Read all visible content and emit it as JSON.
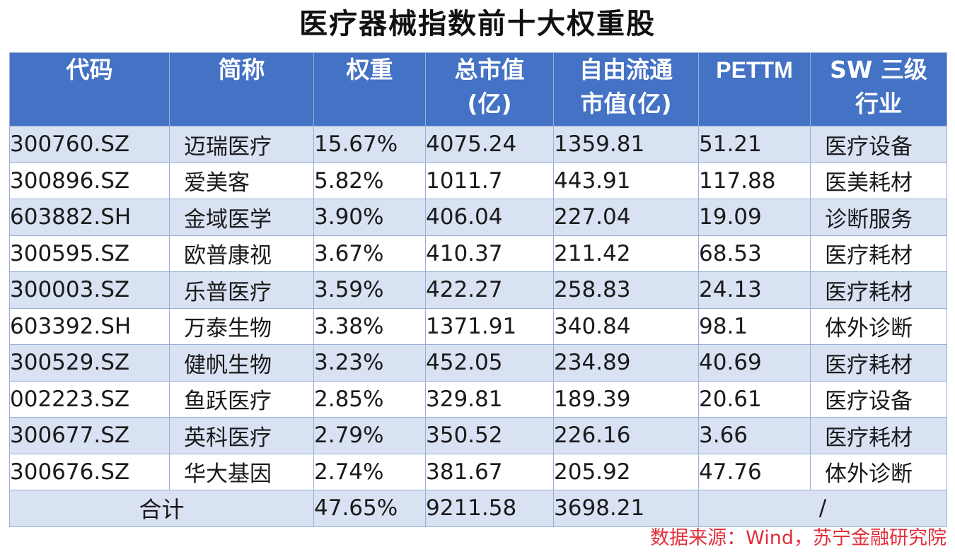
{
  "title": "医疗器械指数前十大权重股",
  "table": {
    "headers": {
      "code": "代码",
      "name": "简称",
      "weight": "权重",
      "mcap_line1": "总市值",
      "mcap_line2": "(亿)",
      "float_line1": "自由流通",
      "float_line2": "市值(亿)",
      "pe": "PETTM",
      "industry_line1": "SW 三级",
      "industry_line2": "行业"
    },
    "rows": [
      {
        "code": "300760.SZ",
        "name": "迈瑞医疗",
        "weight": "15.67%",
        "mcap": "4075.24",
        "float_mcap": "1359.81",
        "pe": "51.21",
        "industry": "医疗设备"
      },
      {
        "code": "300896.SZ",
        "name": "爱美客",
        "weight": "5.82%",
        "mcap": "1011.7",
        "float_mcap": "443.91",
        "pe": "117.88",
        "industry": "医美耗材"
      },
      {
        "code": "603882.SH",
        "name": "金域医学",
        "weight": "3.90%",
        "mcap": "406.04",
        "float_mcap": "227.04",
        "pe": "19.09",
        "industry": "诊断服务"
      },
      {
        "code": "300595.SZ",
        "name": "欧普康视",
        "weight": "3.67%",
        "mcap": "410.37",
        "float_mcap": "211.42",
        "pe": "68.53",
        "industry": "医疗耗材"
      },
      {
        "code": "300003.SZ",
        "name": "乐普医疗",
        "weight": "3.59%",
        "mcap": "422.27",
        "float_mcap": "258.83",
        "pe": "24.13",
        "industry": "医疗耗材"
      },
      {
        "code": "603392.SH",
        "name": "万泰生物",
        "weight": "3.38%",
        "mcap": "1371.91",
        "float_mcap": "340.84",
        "pe": "98.1",
        "industry": "体外诊断"
      },
      {
        "code": "300529.SZ",
        "name": "健帆生物",
        "weight": "3.23%",
        "mcap": "452.05",
        "float_mcap": "234.89",
        "pe": "40.69",
        "industry": "医疗耗材"
      },
      {
        "code": "002223.SZ",
        "name": "鱼跃医疗",
        "weight": "2.85%",
        "mcap": "329.81",
        "float_mcap": "189.39",
        "pe": "20.61",
        "industry": "医疗设备"
      },
      {
        "code": "300677.SZ",
        "name": "英科医疗",
        "weight": "2.79%",
        "mcap": "350.52",
        "float_mcap": "226.16",
        "pe": "3.66",
        "industry": "医疗耗材"
      },
      {
        "code": "300676.SZ",
        "name": "华大基因",
        "weight": "2.74%",
        "mcap": "381.67",
        "float_mcap": "205.92",
        "pe": "47.76",
        "industry": "体外诊断"
      }
    ],
    "total": {
      "label": "合计",
      "weight": "47.65%",
      "mcap": "9211.58",
      "float_mcap": "3698.21",
      "other": "/"
    }
  },
  "source": "数据来源：Wind，苏宁金融研究院",
  "colors": {
    "header_bg": "#4472c4",
    "band_bg": "#d9e2f3",
    "source_text": "#e0303a"
  }
}
